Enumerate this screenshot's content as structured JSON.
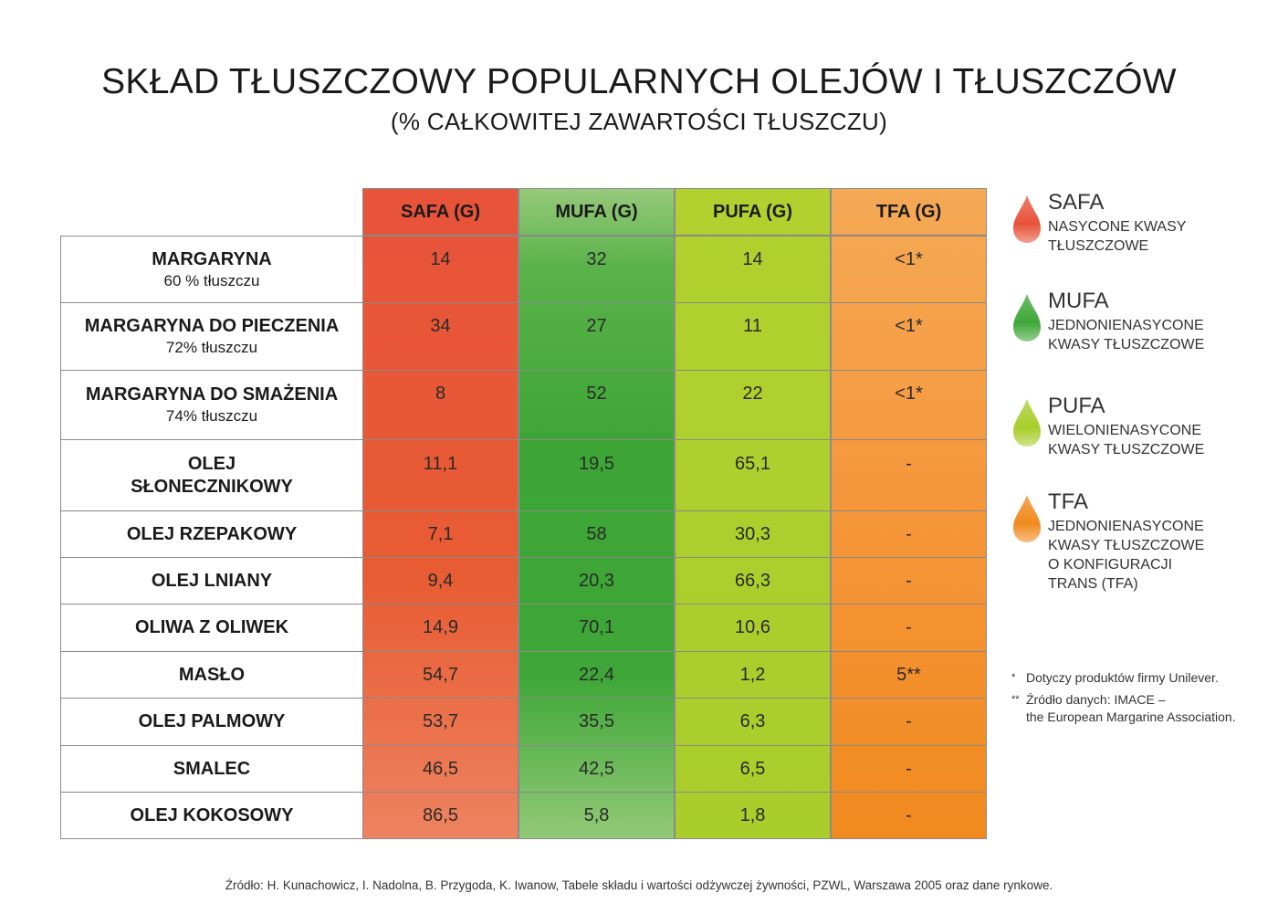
{
  "title": "SKŁAD TŁUSZCZOWY POPULARNYCH OLEJÓW I TŁUSZCZÓW",
  "subtitle": "(% CAŁKOWITEJ ZAWARTOŚCI TŁUSZCZU)",
  "table": {
    "headers": [
      "SAFA (G)",
      "MUFA (G)",
      "PUFA (G)",
      "TFA (G)"
    ],
    "rows": [
      {
        "name": "MARGARYNA",
        "sub": "60 % tłuszczu",
        "values": [
          "14",
          "32",
          "14",
          "<1*"
        ]
      },
      {
        "name": "MARGARYNA DO PIECZENIA",
        "sub": "72% tłuszczu",
        "values": [
          "34",
          "27",
          "11",
          "<1*"
        ]
      },
      {
        "name": "MARGARYNA DO SMAŻENIA",
        "sub": "74% tłuszczu",
        "values": [
          "8",
          "52",
          "22",
          "<1*"
        ]
      },
      {
        "name": "OLEJ",
        "name2": "SŁONECZNIKOWY",
        "values": [
          "11,1",
          "19,5",
          "65,1",
          "-"
        ]
      },
      {
        "name": "OLEJ RZEPAKOWY",
        "values": [
          "7,1",
          "58",
          "30,3",
          "-"
        ]
      },
      {
        "name": "OLEJ LNIANY",
        "values": [
          "9,4",
          "20,3",
          "66,3",
          "-"
        ]
      },
      {
        "name": "OLIWA Z OLIWEK",
        "values": [
          "14,9",
          "70,1",
          "10,6",
          "-"
        ]
      },
      {
        "name": "MASŁO",
        "values": [
          "54,7",
          "22,4",
          "1,2",
          "5**"
        ]
      },
      {
        "name": "OLEJ PALMOWY",
        "values": [
          "53,7",
          "35,5",
          "6,3",
          "-"
        ]
      },
      {
        "name": "SMALEC",
        "values": [
          "46,5",
          "42,5",
          "6,5",
          "-"
        ]
      },
      {
        "name": "OLEJ KOKOSOWY",
        "values": [
          "86,5",
          "5,8",
          "1,8",
          "-"
        ]
      }
    ]
  },
  "legend": [
    {
      "title": "SAFA",
      "lines": [
        "NASYCONE KWASY",
        "TŁUSZCZOWE"
      ],
      "color": "#e8533a"
    },
    {
      "title": "MUFA",
      "lines": [
        "JEDNONIENASYCONE",
        "KWASY TŁUSZCZOWE"
      ],
      "color": "#3ea738"
    },
    {
      "title": "PUFA",
      "lines": [
        "WIELONIENASYCONE",
        "KWASY TŁUSZCZOWE"
      ],
      "color": "#a9cd2b"
    },
    {
      "title": "TFA",
      "lines": [
        "JEDNONIENASYCONE",
        "KWASY TŁUSZCZOWE",
        "O KONFIGURACJI",
        "TRANS (TFA)"
      ],
      "color": "#f18a1e"
    }
  ],
  "notes": {
    "note1_mark": "*",
    "note1": "Dotyczy produktów firmy Unilever.",
    "note2_mark": "**",
    "note2_line1": "Źródło danych: IMACE –",
    "note2_line2": "the European Margarine Association."
  },
  "source": "Źródło: H. Kunachowicz, I. Nadolna, B. Przygoda, K. Iwanow, Tabele składu i wartości odżywczej żywności, PZWL, Warszawa 2005 oraz dane rynkowe."
}
